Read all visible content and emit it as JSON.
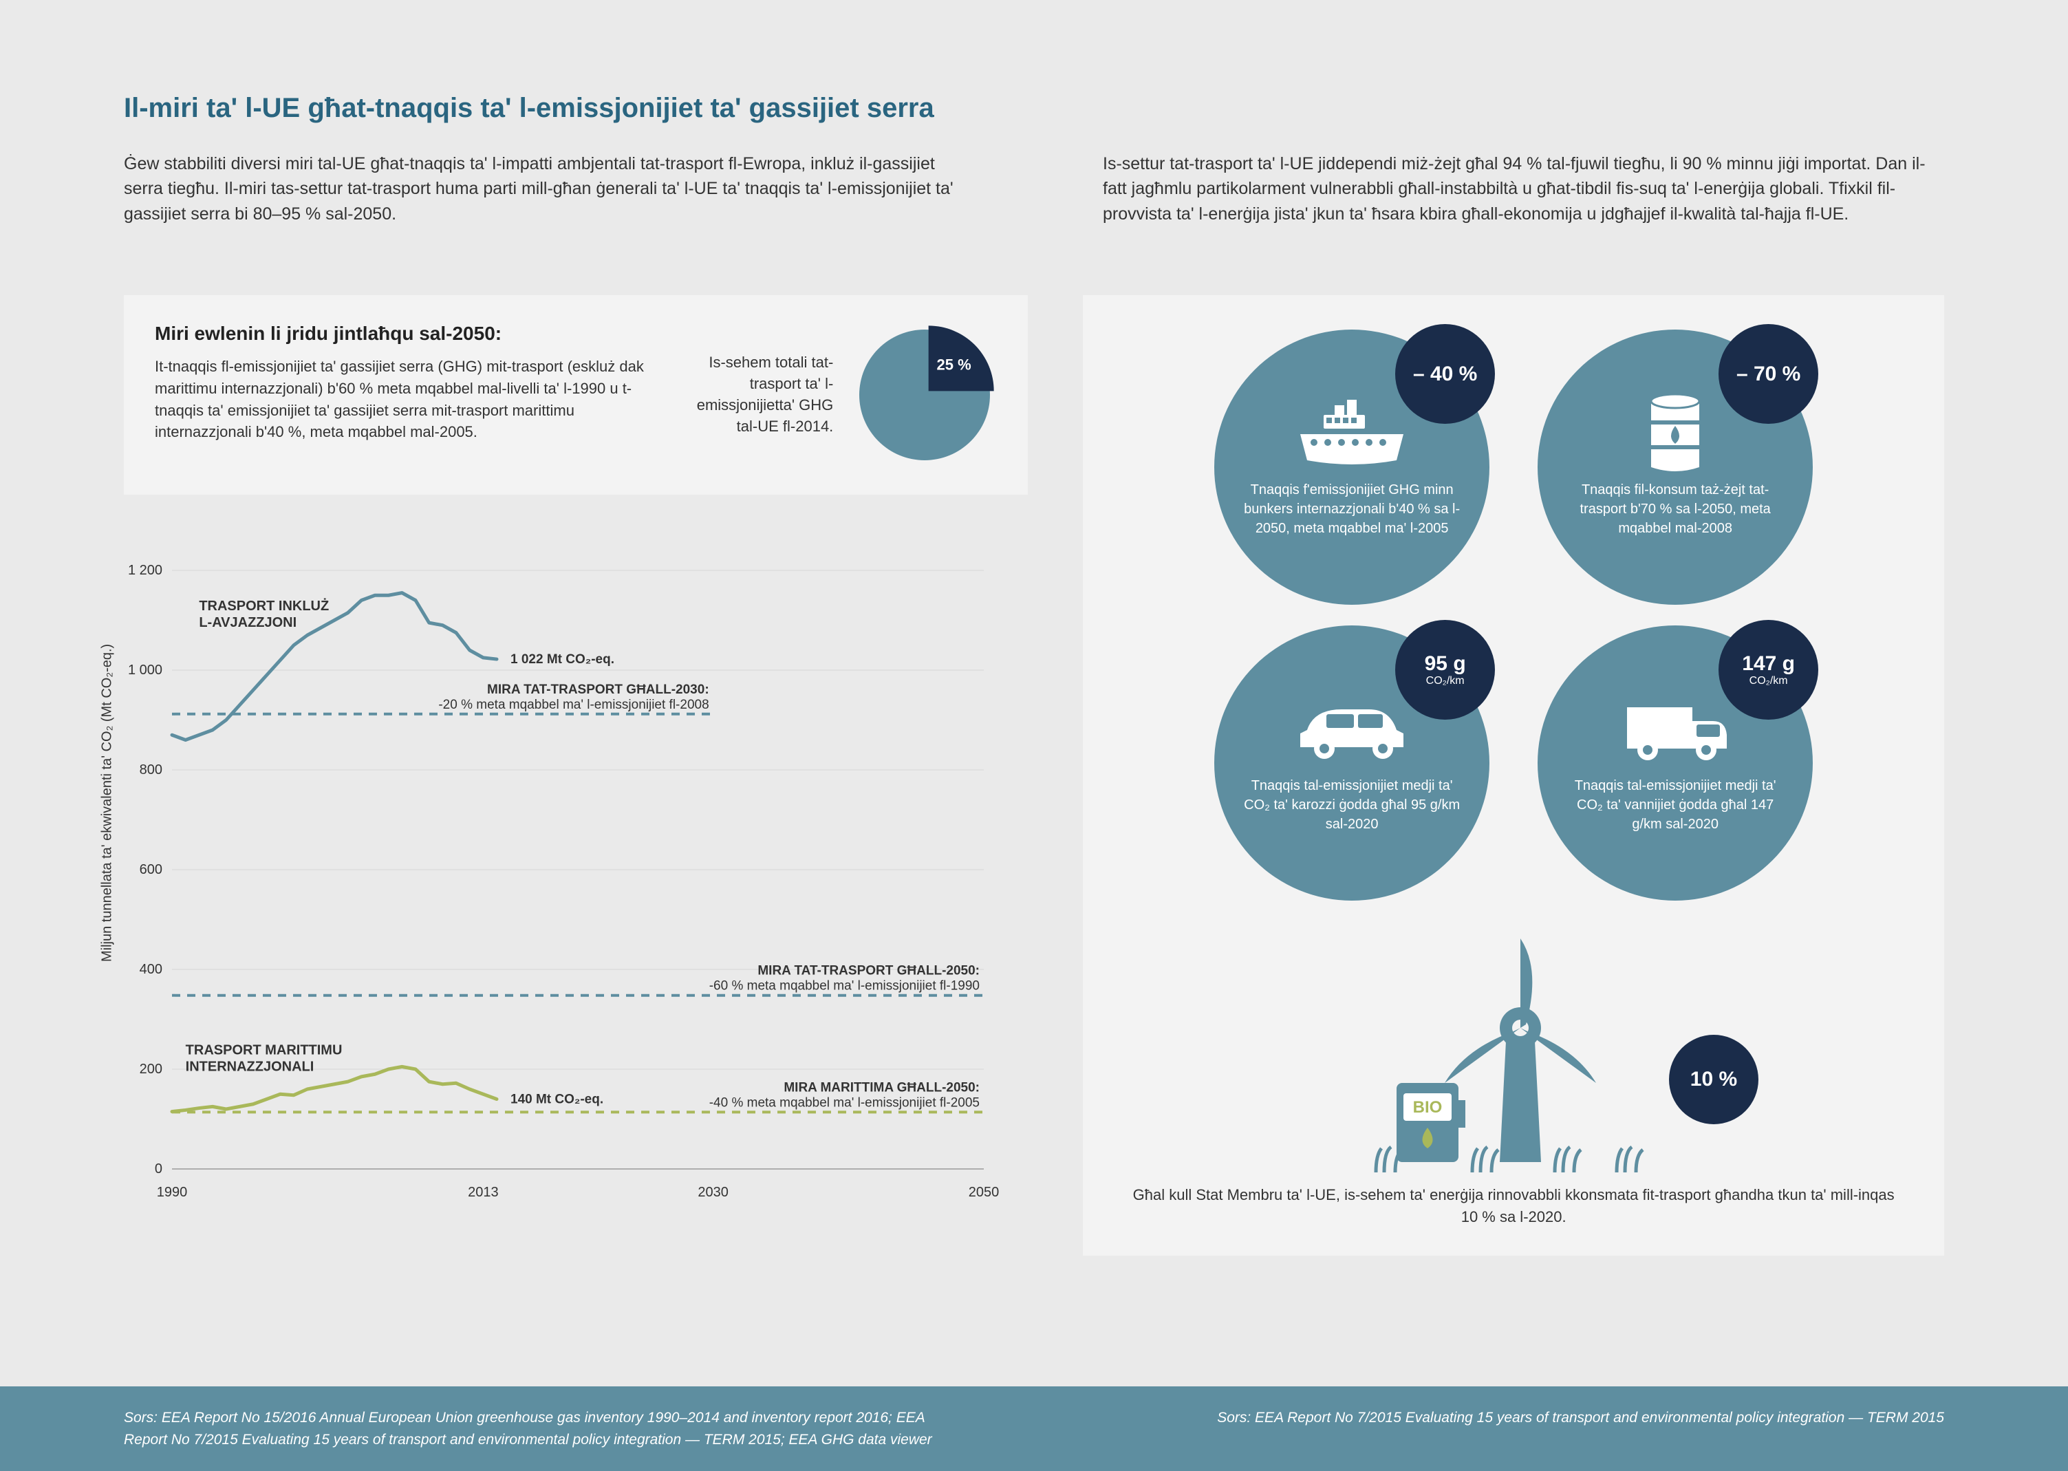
{
  "colors": {
    "page_bg": "#eaeaea",
    "panel_bg": "#f3f3f3",
    "title": "#2a6580",
    "teal": "#5e8ea0",
    "navy": "#1a2c4a",
    "olive": "#a9b85a",
    "text": "#333333",
    "grid": "#d6d6d6",
    "white": "#ffffff"
  },
  "header": {
    "title": "Il-miri ta' l-UE għat-tnaqqis ta' l-emissjonijiet ta' gassijiet serra",
    "para_left": "Ġew stabbiliti diversi miri tal-UE għat-tnaqqis ta' l-impatti ambjentali tat-trasport fl-Ewropa, inkluż il-gassijiet serra tiegħu. Il-miri tas-settur tat-trasport huma parti mill-għan ġenerali ta' l-UE ta' tnaqqis ta' l-emissjonijiet ta' gassijiet serra bi 80–95 % sal-2050.",
    "para_right": "Is-settur tat-trasport ta' l-UE jiddependi miż-żejt għal 94 % tal-fjuwil tiegħu, li 90 % minnu jiġi importat. Dan il-fatt jagħmlu partikolarment vulnerabbli għall-instabbiltà u għat-tibdil fis-suq ta' l-enerġija globali. Tfixkil fil-provvista ta' l-enerġija jista' jkun ta' ħsara kbira għall-ekonomija u jdgħajjef il-kwalità tal-ħajja fl-UE."
  },
  "targets_box": {
    "heading": "Miri ewlenin li jridu jintlaħqu sal-2050:",
    "body": "It-tnaqqis fl-emissjonijiet ta' gassijiet serra (GHG) mit-trasport (eskluż dak marittimu internazzjonali) b'60 % meta mqabbel mal-livelli ta' l-1990 u t-tnaqqis ta' emissjonijiet ta' gassijiet serra mit-trasport marittimu internazzjonali b'40 %, meta mqabbel mal-2005.",
    "pie": {
      "caption": "Is-sehem totali tat-trasport ta' l-emissjonijietta' GHG tal-UE fl-2014.",
      "value_label": "25 %",
      "slice_pct": 25,
      "main_color": "#5e8ea0",
      "slice_color": "#1a2c4a",
      "radius": 95
    }
  },
  "chart": {
    "y_axis_label": "Miljun tunnellata ta' ekwivalenti ta' CO₂ (Mt CO₂-eq.)",
    "y_range": [
      0,
      1200
    ],
    "y_ticks": [
      0,
      200,
      400,
      600,
      800,
      1000,
      1200
    ],
    "x_range": [
      1990,
      2050
    ],
    "x_ticks": [
      1990,
      2013,
      2030,
      2050
    ],
    "grid_color": "#d6d6d6",
    "series": {
      "aviation": {
        "label": "TRASPORT INKLUŻ L-AVJAZZJONI",
        "color": "#5e8ea0",
        "stroke_width": 5,
        "end_label": "1 022 Mt CO₂-eq.",
        "points": [
          [
            1990,
            870
          ],
          [
            1991,
            860
          ],
          [
            1992,
            870
          ],
          [
            1993,
            880
          ],
          [
            1994,
            900
          ],
          [
            1995,
            930
          ],
          [
            1996,
            960
          ],
          [
            1997,
            990
          ],
          [
            1998,
            1020
          ],
          [
            1999,
            1050
          ],
          [
            2000,
            1070
          ],
          [
            2001,
            1085
          ],
          [
            2002,
            1100
          ],
          [
            2003,
            1115
          ],
          [
            2004,
            1140
          ],
          [
            2005,
            1150
          ],
          [
            2006,
            1150
          ],
          [
            2007,
            1155
          ],
          [
            2008,
            1140
          ],
          [
            2009,
            1095
          ],
          [
            2010,
            1090
          ],
          [
            2011,
            1075
          ],
          [
            2012,
            1040
          ],
          [
            2013,
            1025
          ],
          [
            2014,
            1022
          ]
        ]
      },
      "maritime": {
        "label": "TRASPORT MARITTIMU INTERNAZZJONALI",
        "color": "#a9b85a",
        "stroke_width": 5,
        "end_label": "140 Mt CO₂-eq.",
        "points": [
          [
            1990,
            115
          ],
          [
            1991,
            118
          ],
          [
            1992,
            122
          ],
          [
            1993,
            125
          ],
          [
            1994,
            120
          ],
          [
            1995,
            125
          ],
          [
            1996,
            130
          ],
          [
            1997,
            140
          ],
          [
            1998,
            150
          ],
          [
            1999,
            148
          ],
          [
            2000,
            160
          ],
          [
            2001,
            165
          ],
          [
            2002,
            170
          ],
          [
            2003,
            175
          ],
          [
            2004,
            185
          ],
          [
            2005,
            190
          ],
          [
            2006,
            200
          ],
          [
            2007,
            205
          ],
          [
            2008,
            200
          ],
          [
            2009,
            175
          ],
          [
            2010,
            170
          ],
          [
            2011,
            172
          ],
          [
            2012,
            160
          ],
          [
            2013,
            150
          ],
          [
            2014,
            140
          ]
        ]
      }
    },
    "target_lines": [
      {
        "id": "t2030",
        "color": "#5e8ea0",
        "y": 912,
        "x_start": 1990,
        "x_end": 2030,
        "label_top": "MIRA TAT-TRASPORT GĦALL-2030:",
        "label_sub": "-20 % meta mqabbel ma' l-emissjonijiet fl-2008"
      },
      {
        "id": "t2050a",
        "color": "#5e8ea0",
        "y": 348,
        "x_start": 1990,
        "x_end": 2050,
        "label_top": "MIRA TAT-TRASPORT GĦALL-2050:",
        "label_sub": "-60 % meta mqabbel ma' l-emissjonijiet fl-1990"
      },
      {
        "id": "t2050m",
        "color": "#a9b85a",
        "y": 114,
        "x_start": 1990,
        "x_end": 2050,
        "label_top": "MIRA MARITTIMA GĦALL-2050:",
        "label_sub": "-40 % meta mqabbel ma' l-emissjonijiet fl-2005"
      }
    ],
    "tick_fontsize": 20,
    "anno_fontsize": 19,
    "series_label_fontsize": 20
  },
  "right": {
    "items": [
      {
        "badge": "– 40 %",
        "badge_sub": "",
        "icon": "ship",
        "text": "Tnaqqis f'emissjonijiet GHG minn bunkers internazzjonali b'40 % sa l-2050, meta mqabbel ma' l-2005"
      },
      {
        "badge": "– 70 %",
        "badge_sub": "",
        "icon": "barrel",
        "text": "Tnaqqis fil-konsum taż-żejt tat-trasport b'70 % sa l-2050, meta mqabbel mal-2008"
      },
      {
        "badge": "95 g",
        "badge_sub": "CO₂/km",
        "icon": "car",
        "text": "Tnaqqis tal-emissjonijiet medji ta' CO₂ ta' karozzi ġodda għal 95 g/km sal-2020"
      },
      {
        "badge": "147 g",
        "badge_sub": "CO₂/km",
        "icon": "van",
        "text": "Tnaqqis tal-emissjonijiet medji ta' CO₂ ta' vannijiet ġodda għal 147 g/km sal-2020"
      }
    ],
    "bio": {
      "badge": "10 %",
      "caption": "Għal kull Stat Membru ta' l-UE, is-sehem ta' enerġija rinnovabbli kkonsmata fit-trasport għandha tkun ta' mill-inqas 10 % sa l-2020."
    }
  },
  "footer": {
    "left": "Sors: EEA Report No 15/2016 Annual European Union greenhouse gas inventory 1990–2014 and inventory report 2016; EEA Report No 7/2015 Evaluating 15 years of transport and environmental policy integration — TERM 2015; EEA GHG data viewer",
    "right": "Sors: EEA Report No 7/2015 Evaluating 15 years of transport and environmental policy integration — TERM 2015"
  }
}
